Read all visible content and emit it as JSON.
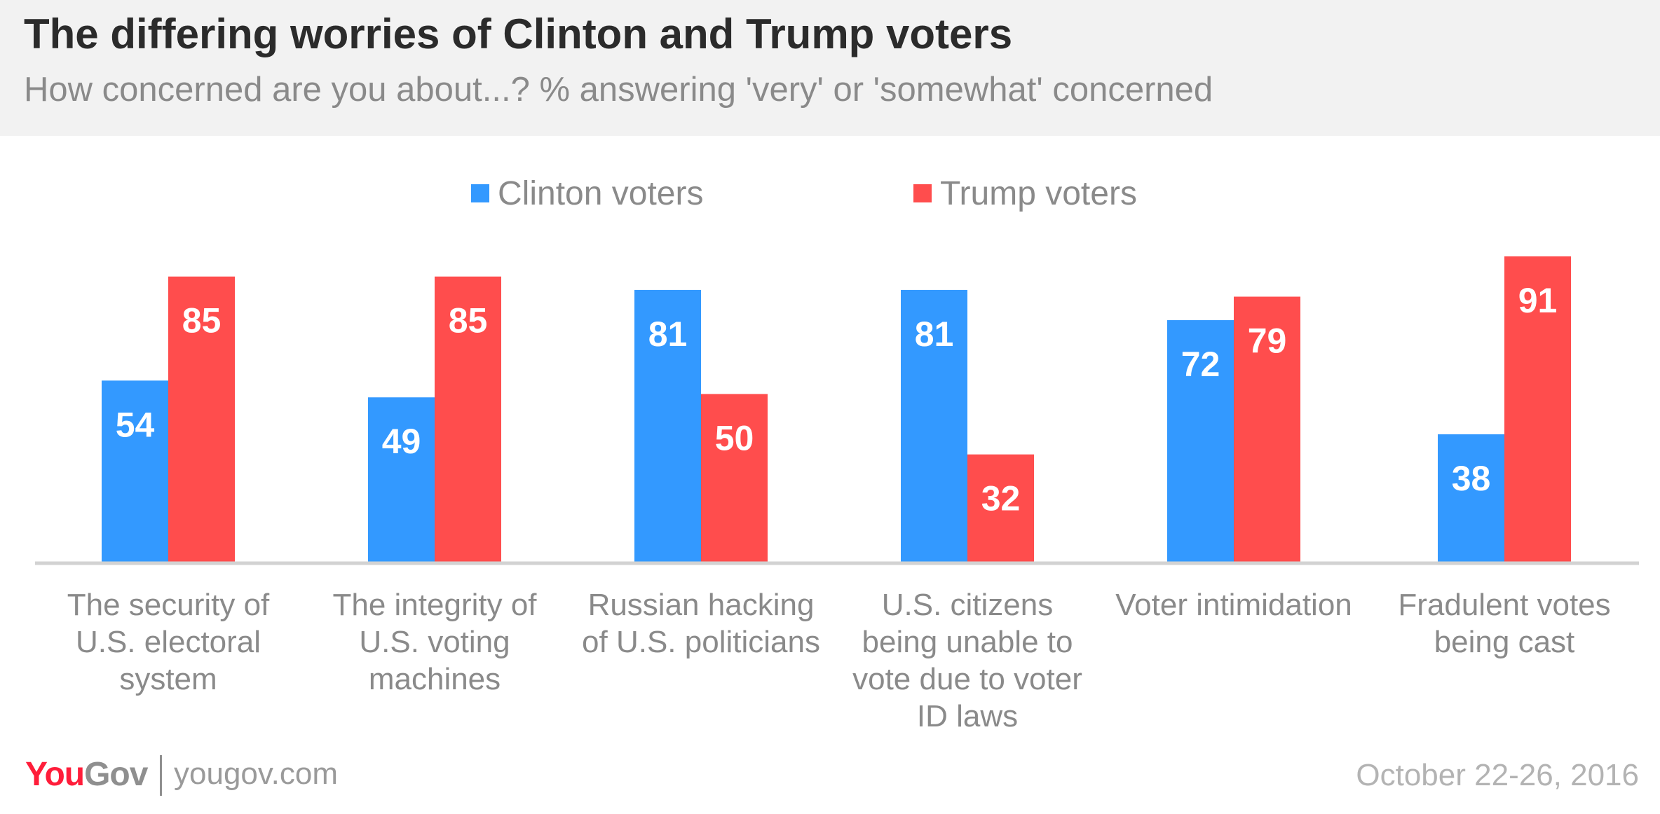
{
  "header": {
    "title": "The differing worries of Clinton and Trump voters",
    "subtitle": "How concerned are you about...? % answering 'very' or 'somewhat' concerned"
  },
  "chart_data": {
    "type": "bar",
    "categories": [
      [
        "The security of",
        "U.S. electoral",
        "system"
      ],
      [
        "The integrity of",
        "U.S. voting",
        "machines"
      ],
      [
        "Russian hacking",
        "of U.S. politicians"
      ],
      [
        "U.S. citizens",
        "being unable to",
        "vote due to voter",
        "ID laws"
      ],
      [
        "Voter intimidation"
      ],
      [
        "Fradulent votes",
        "being cast"
      ]
    ],
    "series": [
      {
        "name": "Clinton voters",
        "color": "#3399ff",
        "values": [
          54,
          49,
          81,
          81,
          72,
          38
        ]
      },
      {
        "name": "Trump voters",
        "color": "#ff4d4d",
        "values": [
          85,
          85,
          50,
          32,
          79,
          91
        ]
      }
    ],
    "ylim": [
      0,
      91
    ],
    "grid": false,
    "legend_position": "top-center",
    "data_labels": true
  },
  "footer": {
    "logo_you": "You",
    "logo_gov": "Gov",
    "site": "yougov.com",
    "date": "October 22-26, 2016"
  }
}
